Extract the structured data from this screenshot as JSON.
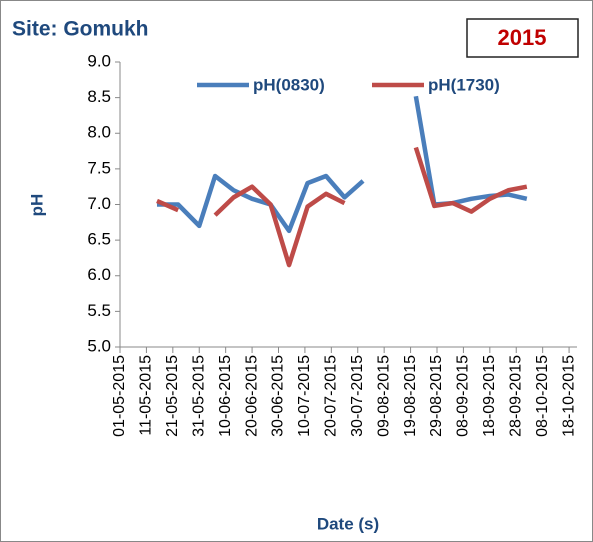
{
  "chart_data": {
    "type": "line",
    "title": "Site: Gomukh",
    "annotation": "2015",
    "y_label": "pH",
    "x_label": "Date (s)",
    "x": [
      "15-05-2015",
      "23-05-2015",
      "31-05-2015",
      "06-06-2015",
      "13-06-2015",
      "20-06-2015",
      "27-06-2015",
      "04-07-2015",
      "11-07-2015",
      "18-07-2015",
      "25-07-2015",
      "01-08-2015",
      "11-08-2015",
      "21-08-2015",
      "28-08-2015",
      "04-09-2015",
      "11-09-2015",
      "18-09-2015",
      "25-09-2015",
      "02-10-2015"
    ],
    "series": [
      {
        "name": "pH(0830)",
        "color": "#4a7ebb",
        "values": [
          7.0,
          7.0,
          6.7,
          7.4,
          7.2,
          7.08,
          7.0,
          6.63,
          7.3,
          7.4,
          7.1,
          7.33,
          null,
          8.52,
          7.0,
          7.02,
          7.08,
          7.12,
          7.14,
          7.08
        ]
      },
      {
        "name": "pH(1730)",
        "color": "#be4b48",
        "values": [
          7.05,
          6.92,
          null,
          6.85,
          7.1,
          7.25,
          7.0,
          6.15,
          6.97,
          7.15,
          7.02,
          null,
          null,
          7.8,
          6.98,
          7.02,
          6.9,
          7.08,
          7.2,
          7.25
        ]
      }
    ],
    "xlim": [
      "01-05-2015",
      "21-10-2015"
    ],
    "xticks": [
      "01-05-2015",
      "11-05-2015",
      "21-05-2015",
      "31-05-2015",
      "10-06-2015",
      "20-06-2015",
      "30-06-2015",
      "10-07-2015",
      "20-07-2015",
      "30-07-2015",
      "09-08-2015",
      "19-08-2015",
      "29-08-2015",
      "08-09-2015",
      "18-09-2015",
      "28-09-2015",
      "08-10-2015",
      "18-10-2015"
    ],
    "ylim": [
      5,
      9
    ],
    "yticks": [
      {
        "value": 5,
        "label": "5.0"
      },
      {
        "value": 5.5,
        "label": "5.5"
      },
      {
        "value": 6,
        "label": "6.0"
      },
      {
        "value": 6.5,
        "label": "6.5"
      },
      {
        "value": 7,
        "label": "7.0"
      },
      {
        "value": 7.5,
        "label": "7.5"
      },
      {
        "value": 8,
        "label": "8.0"
      },
      {
        "value": 8.5,
        "label": "8.5"
      },
      {
        "value": 9,
        "label": "9.0"
      }
    ],
    "grid": false,
    "legend": "top"
  }
}
